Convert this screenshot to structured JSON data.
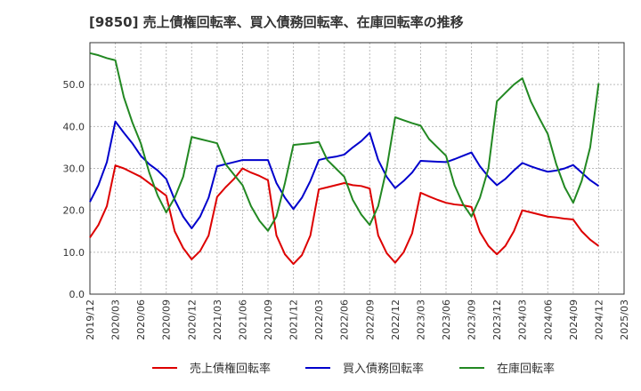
{
  "chart_data": {
    "type": "line",
    "title": "[9850]  売上債権回転率、買入債務回転率、在庫回転率の推移",
    "xlabel": "",
    "ylabel": "",
    "ylim": [
      0,
      60
    ],
    "yticks": [
      "0.0",
      "10.0",
      "20.0",
      "30.0",
      "40.0",
      "50.0"
    ],
    "x_range": [
      "2019/12",
      "2025/03"
    ],
    "xticks": [
      "2019/12",
      "2020/03",
      "2020/06",
      "2020/09",
      "2020/12",
      "2021/03",
      "2021/06",
      "2021/09",
      "2021/12",
      "2022/03",
      "2022/06",
      "2022/09",
      "2022/12",
      "2023/03",
      "2023/06",
      "2023/09",
      "2023/12",
      "2024/03",
      "2024/06",
      "2024/09",
      "2024/12",
      "2025/03"
    ],
    "legend_position": "bottom",
    "series": [
      {
        "name": "売上債権回転率",
        "color": "#dd0000",
        "values": [
          13.5,
          16.5,
          21,
          30.7,
          30,
          29,
          28,
          26.5,
          25,
          23.5,
          15,
          11,
          8.3,
          10.3,
          14,
          23.2,
          25.5,
          27.5,
          30,
          29,
          28.2,
          27.2,
          14,
          9.5,
          7.2,
          9.3,
          14,
          25,
          25.5,
          26,
          26.5,
          26,
          25.8,
          25.2,
          14,
          9.8,
          7.5,
          10,
          14.5,
          24.2,
          23.3,
          22.5,
          21.8,
          21.4,
          21.2,
          20.8,
          14.8,
          11.5,
          9.5,
          11.5,
          15,
          20,
          19.5,
          19,
          18.5,
          18.3,
          18,
          17.8,
          15,
          13,
          11.5
        ]
      },
      {
        "name": "買入債務回転率",
        "color": "#0000cc",
        "values": [
          22,
          26,
          31.5,
          41.2,
          38.5,
          36,
          33,
          31,
          29.5,
          27.5,
          22.5,
          18.5,
          15.7,
          18.5,
          23,
          30.5,
          31,
          31.5,
          32,
          32,
          32,
          32,
          26.5,
          23,
          20.3,
          23,
          27,
          32,
          32.5,
          32.8,
          33.3,
          35,
          36.5,
          38.5,
          32,
          28,
          25.3,
          27,
          29,
          31.8,
          31.7,
          31.6,
          31.5,
          32.2,
          33,
          33.8,
          30.5,
          28,
          26,
          27.5,
          29.5,
          31.3,
          30.5,
          29.8,
          29.2,
          29.5,
          30,
          30.8,
          29,
          27.2,
          25.8
        ]
      },
      {
        "name": "在庫回転率",
        "color": "#228822",
        "values": [
          57.5,
          57,
          56.3,
          55.8,
          47,
          41,
          36,
          29,
          23.5,
          19.5,
          23,
          28,
          37.5,
          37,
          36.5,
          36,
          31,
          28.5,
          26,
          21,
          17.5,
          15.1,
          18.5,
          26.5,
          35.6,
          35.8,
          36,
          36.3,
          32,
          30,
          28,
          22.5,
          19,
          16.5,
          21,
          30,
          42.2,
          41.5,
          40.8,
          40.2,
          37,
          35,
          33,
          26,
          21.5,
          18.5,
          23,
          30,
          46,
          48,
          50,
          51.5,
          46,
          42,
          38.2,
          31,
          25.5,
          21.8,
          27,
          35,
          50.3
        ]
      }
    ]
  }
}
